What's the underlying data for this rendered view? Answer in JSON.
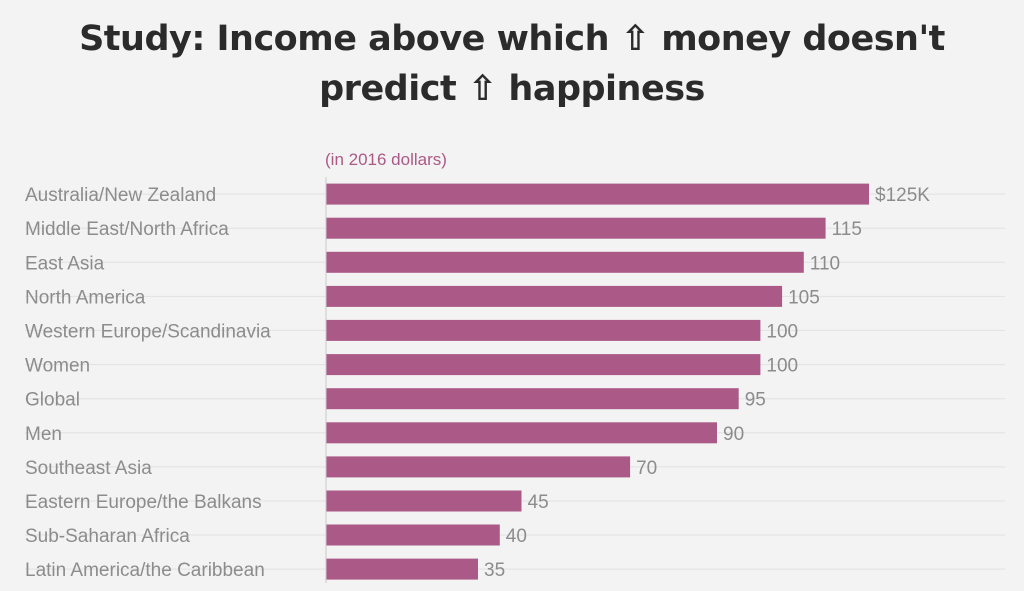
{
  "chart_data": {
    "type": "bar",
    "orientation": "horizontal",
    "title_lines": [
      "Study: Income above which ⇧ money doesn't",
      "predict ⇧ happiness"
    ],
    "subtitle": "(in 2016 dollars)",
    "categories": [
      "Australia/New Zealand",
      "Middle East/North Africa",
      "East Asia",
      "North America",
      "Western Europe/Scandinavia",
      "Women",
      "Global",
      "Men",
      "Southeast Asia",
      "Eastern Europe/the Balkans",
      "Sub-Saharan Africa",
      "Latin America/the Caribbean"
    ],
    "values": [
      125,
      115,
      110,
      105,
      100,
      100,
      95,
      90,
      70,
      45,
      40,
      35
    ],
    "value_labels": [
      "$125K",
      "115",
      "110",
      "105",
      "100",
      "100",
      "95",
      "90",
      "70",
      "45",
      "40",
      "35"
    ],
    "xlim": [
      0,
      125
    ],
    "grid": "horizontal row lines",
    "colors": {
      "bar": "#ab5a87",
      "subtitle": "#ab5a87",
      "labels": "#8c8c8c",
      "title": "#2b2b2b",
      "background": "#f3f3f3"
    }
  }
}
